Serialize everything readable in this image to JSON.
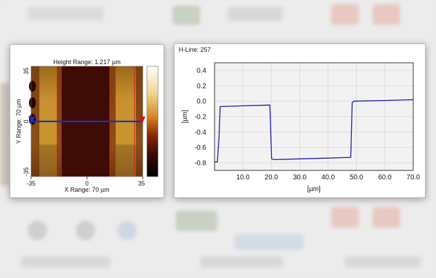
{
  "left_panel": {
    "title": "Height Range:  1.217 µm",
    "x_range_label": "X Range: 70 µm",
    "y_range_label": "Y Range: 70 µm",
    "x_ticks": [
      "-35",
      "0",
      "35"
    ],
    "y_ticks": [
      "35",
      "0",
      "-35"
    ]
  },
  "right_panel": {
    "line_label": "H-Line: 257",
    "colors": {
      "line": "#1a1aa8",
      "grid": "#dcdcdc"
    },
    "chart_data": {
      "type": "line",
      "x": [
        0.0,
        1.0,
        1.6,
        2.0,
        10.0,
        19.5,
        20.1,
        21.0,
        30.0,
        40.0,
        48.0,
        48.5,
        49.0,
        60.0,
        70.0
      ],
      "values": [
        -0.79,
        -0.79,
        -0.45,
        -0.07,
        -0.06,
        -0.05,
        -0.75,
        -0.76,
        -0.75,
        -0.74,
        -0.73,
        -0.02,
        0.0,
        0.01,
        0.02
      ],
      "xlabel": "[µm]",
      "ylabel": "[µm]",
      "xlim": [
        0,
        70
      ],
      "ylim": [
        -0.9,
        0.5
      ],
      "x_ticks": [
        "10.0",
        "20.0",
        "30.0",
        "40.0",
        "50.0",
        "60.0",
        "70.0"
      ],
      "y_ticks": [
        "0.4",
        "0.2",
        "0.0",
        "-0.2",
        "-0.4",
        "-0.6",
        "-0.8"
      ],
      "grid": true
    }
  }
}
